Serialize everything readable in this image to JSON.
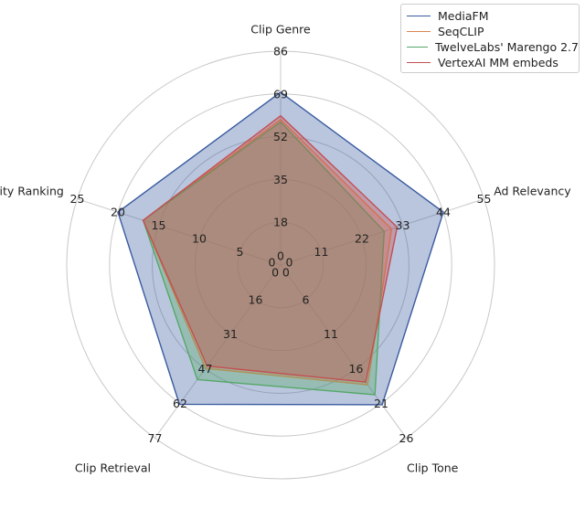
{
  "chart_data": {
    "type": "radar",
    "axes": [
      {
        "label": "Clip Genre",
        "ticks": [
          "0",
          "18",
          "35",
          "52",
          "69",
          "86"
        ],
        "max": 86
      },
      {
        "label": "Ad Relevancy",
        "ticks": [
          "0",
          "11",
          "22",
          "33",
          "44",
          "55"
        ],
        "max": 55
      },
      {
        "label": "Clip Tone",
        "ticks": [
          "0",
          "6",
          "11",
          "16",
          "21",
          "26"
        ],
        "max": 26
      },
      {
        "label": "Clip Retrieval",
        "ticks": [
          "0",
          "16",
          "31",
          "47",
          "62",
          "77"
        ],
        "max": 77
      },
      {
        "label": "Clip Popularity Ranking",
        "ticks": [
          "0",
          "5",
          "10",
          "15",
          "20",
          "25"
        ],
        "max": 25
      }
    ],
    "series": [
      {
        "name": "MediaFM",
        "color": "#3a5ba0",
        "values": [
          69.5,
          44.0,
          21.0,
          62.0,
          20.0
        ]
      },
      {
        "name": "SeqCLIP",
        "color": "#dd8452",
        "values": [
          58.5,
          30.0,
          18.0,
          46.0,
          16.9
        ]
      },
      {
        "name": "TwelveLabs' Marengo 2.7",
        "color": "#55a868",
        "values": [
          57.5,
          28.0,
          19.5,
          51.0,
          16.9
        ]
      },
      {
        "name": "VertexAI MM embeds",
        "color": "#c44e52",
        "values": [
          60.0,
          31.5,
          17.6,
          45.0,
          16.9
        ]
      }
    ],
    "num_rings": 5,
    "legend_position": "top-right"
  }
}
